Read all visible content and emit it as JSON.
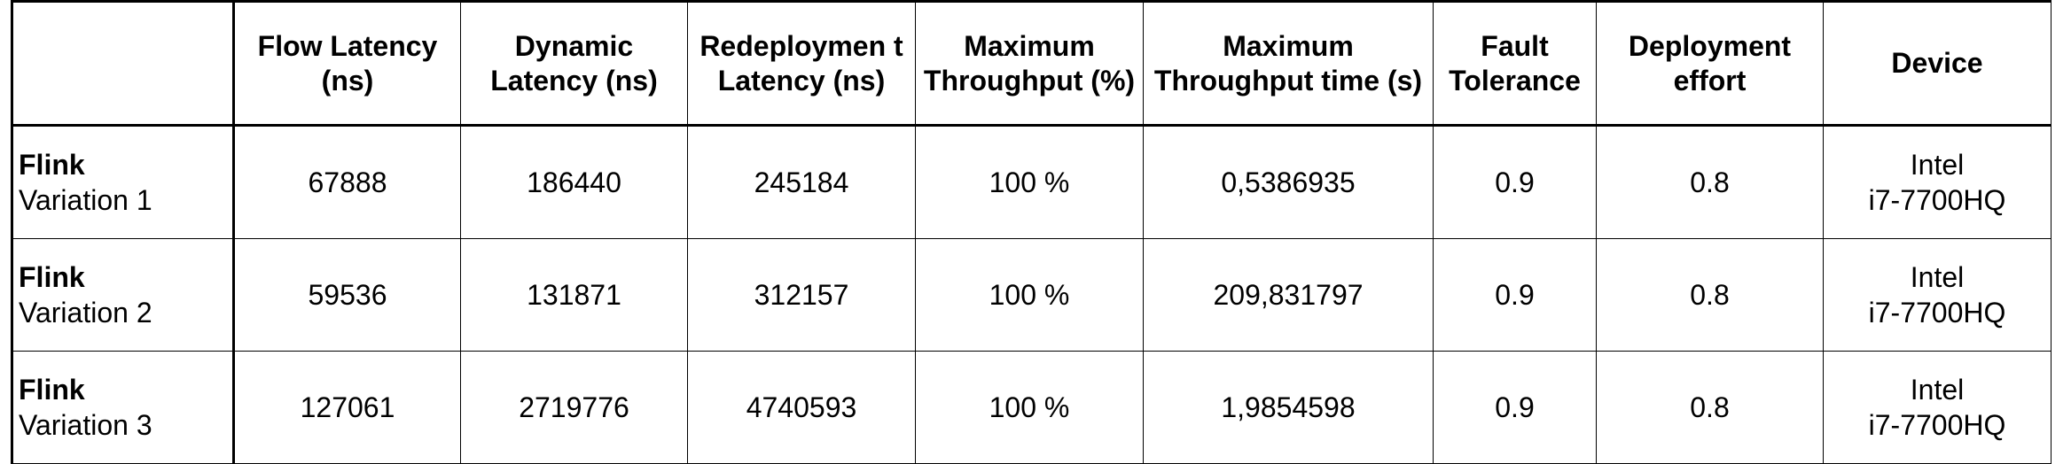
{
  "table": {
    "headers": [
      "",
      "Flow Latency (ns)",
      "Dynamic Latency (ns)",
      "Redeploymen t Latency (ns)",
      "Maximum Throughput (%)",
      "Maximum Throughput time (s)",
      "Fault Tolerance",
      "Deployment effort",
      "Device"
    ],
    "rows": [
      {
        "name": "Flink",
        "variation": "Variation 1",
        "flow_latency": "67888",
        "dynamic_latency": "186440",
        "redeployment_latency": "245184",
        "max_throughput": "100 %",
        "max_throughput_time": "0,5386935",
        "fault_tolerance": "0.9",
        "deployment_effort": "0.8",
        "device_line1": "Intel",
        "device_line2": "i7-7700HQ"
      },
      {
        "name": "Flink",
        "variation": "Variation 2",
        "flow_latency": "59536",
        "dynamic_latency": "131871",
        "redeployment_latency": "312157",
        "max_throughput": "100 %",
        "max_throughput_time": "209,831797",
        "fault_tolerance": "0.9",
        "deployment_effort": "0.8",
        "device_line1": "Intel",
        "device_line2": "i7-7700HQ"
      },
      {
        "name": "Flink",
        "variation": "Variation 3",
        "flow_latency": "127061",
        "dynamic_latency": "2719776",
        "redeployment_latency": "4740593",
        "max_throughput": "100 %",
        "max_throughput_time": "1,9854598",
        "fault_tolerance": "0.9",
        "deployment_effort": "0.8",
        "device_line1": "Intel",
        "device_line2": "i7-7700HQ"
      }
    ]
  }
}
